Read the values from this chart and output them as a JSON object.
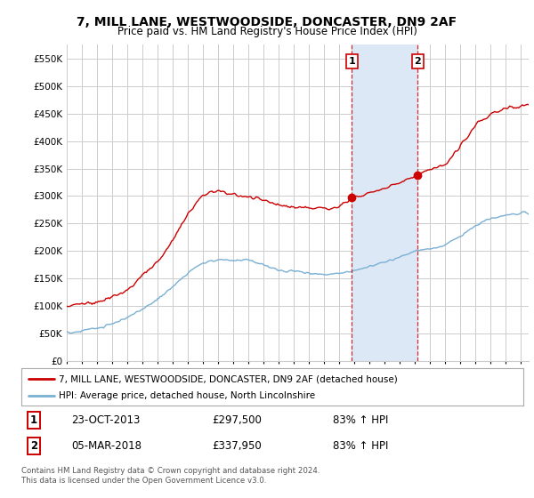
{
  "title": "7, MILL LANE, WESTWOODSIDE, DONCASTER, DN9 2AF",
  "subtitle": "Price paid vs. HM Land Registry's House Price Index (HPI)",
  "ylabel_ticks": [
    "£0",
    "£50K",
    "£100K",
    "£150K",
    "£200K",
    "£250K",
    "£300K",
    "£350K",
    "£400K",
    "£450K",
    "£500K",
    "£550K"
  ],
  "ytick_values": [
    0,
    50000,
    100000,
    150000,
    200000,
    250000,
    300000,
    350000,
    400000,
    450000,
    500000,
    550000
  ],
  "ylim": [
    0,
    575000
  ],
  "xlim_start": 1995.0,
  "xlim_end": 2025.5,
  "red_line_color": "#cc0000",
  "blue_line_color": "#7ab0d4",
  "marker1_year": 2013.83,
  "marker2_year": 2018.17,
  "marker1_value": 297500,
  "marker2_value": 337950,
  "marker1_label": "1",
  "marker2_label": "2",
  "marker1_date": "23-OCT-2013",
  "marker1_price": "£297,500",
  "marker1_hpi": "83% ↑ HPI",
  "marker2_date": "05-MAR-2018",
  "marker2_price": "£337,950",
  "marker2_hpi": "83% ↑ HPI",
  "legend_red": "7, MILL LANE, WESTWOODSIDE, DONCASTER, DN9 2AF (detached house)",
  "legend_blue": "HPI: Average price, detached house, North Lincolnshire",
  "footer": "Contains HM Land Registry data © Crown copyright and database right 2024.\nThis data is licensed under the Open Government Licence v3.0.",
  "bg_color": "#ffffff",
  "plot_bg_color": "#ffffff",
  "grid_color": "#cccccc",
  "shaded_region_color": "#dce8f5"
}
